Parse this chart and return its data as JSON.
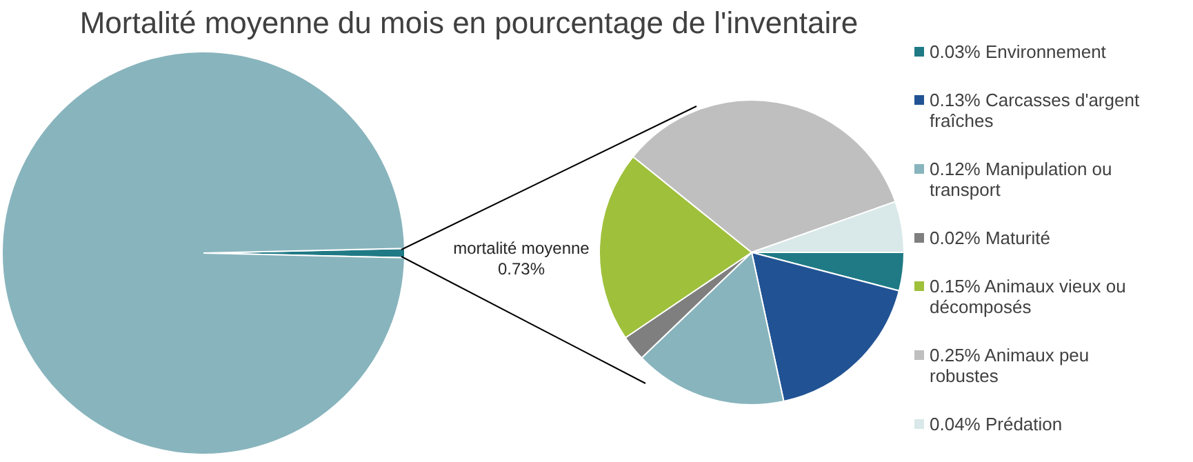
{
  "chart_data": [
    {
      "type": "pie",
      "title": "Mortalité moyenne du mois en pourcentage de l'inventaire",
      "categories": [
        "mortalité moyenne",
        null
      ],
      "values": [
        0.73,
        99.27
      ],
      "value_labels": [
        "0.73%",
        null
      ],
      "colors": [
        "#1f7a85",
        "#88b4bd"
      ]
    },
    {
      "type": "pie",
      "categories": [
        "0.03% Environnement",
        "0.13% Carcasses d'argent fraîches",
        "0.12% Manipulation ou transport",
        "0.02% Maturité",
        "0.15% Animaux vieux ou décomposés",
        "0.25% Animaux peu robustes",
        "0.04% Prédation"
      ],
      "values": [
        0.03,
        0.13,
        0.12,
        0.02,
        0.15,
        0.25,
        0.04
      ],
      "colors": [
        "#1f7a85",
        "#215394",
        "#88b4bd",
        "#7f7f7f",
        "#9fc03b",
        "#bfbfbf",
        "#d9e8e8"
      ],
      "legend": "right"
    }
  ]
}
